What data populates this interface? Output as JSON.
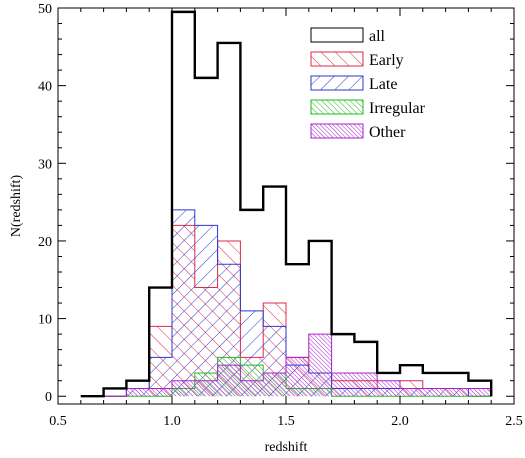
{
  "chart_data": {
    "type": "histogram",
    "title": "",
    "xlabel": "redshift",
    "ylabel": "N(redshift)",
    "xlim": [
      0.5,
      2.5
    ],
    "ylim": [
      -1,
      50
    ],
    "xticks": [
      0.5,
      1.0,
      1.5,
      2.0,
      2.5
    ],
    "xtick_labels": [
      "0.5",
      "1.0",
      "1.5",
      "2.0",
      "2.5"
    ],
    "yticks": [
      0,
      10,
      20,
      30,
      40,
      50
    ],
    "ytick_labels": [
      "0",
      "10",
      "20",
      "30",
      "40",
      "50"
    ],
    "bin_edges": [
      0.6,
      0.7,
      0.8,
      0.9,
      1.0,
      1.1,
      1.2,
      1.3,
      1.4,
      1.5,
      1.6,
      1.7,
      1.8,
      1.9,
      2.0,
      2.1,
      2.2,
      2.3,
      2.4
    ],
    "grid": false,
    "legend_position": "top-right",
    "series": [
      {
        "name": "all",
        "color": "#000000",
        "style": "outline",
        "values": [
          0,
          1,
          2,
          14,
          49.5,
          41,
          45.5,
          24,
          27,
          17,
          20,
          8,
          7,
          3,
          4,
          3,
          3,
          2
        ]
      },
      {
        "name": "Early",
        "color": "#dd2a4a",
        "style": "hatch-forward",
        "values": [
          0,
          0,
          1,
          9,
          22,
          14,
          20,
          5,
          12,
          5,
          3,
          2,
          2,
          1,
          2,
          1,
          1,
          1
        ]
      },
      {
        "name": "Late",
        "color": "#2a3acc",
        "style": "hatch-back",
        "values": [
          0,
          0,
          1,
          5,
          24,
          22,
          17,
          11,
          9,
          4,
          3,
          1,
          1,
          1,
          1,
          1,
          1,
          0
        ]
      },
      {
        "name": "Irregular",
        "color": "#22bb22",
        "style": "hatch-dense",
        "values": [
          0,
          0,
          0,
          0,
          1,
          3,
          5,
          4,
          3,
          1,
          1,
          0,
          0,
          0,
          0,
          0,
          0,
          0
        ]
      },
      {
        "name": "Other",
        "color": "#aa22cc",
        "style": "hatch-fine",
        "values": [
          0,
          0,
          1,
          1,
          2,
          2,
          4,
          2,
          3,
          5,
          8,
          3,
          3,
          2,
          1,
          1,
          1,
          1
        ]
      }
    ]
  }
}
